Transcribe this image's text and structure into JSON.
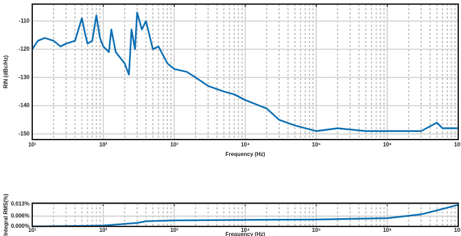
{
  "chart_data": [
    {
      "type": "line",
      "xlabel": "Frequency (Hz)",
      "ylabel": "RIN (dBc/Hz)",
      "xscale": "log",
      "grid": true,
      "xlim": [
        10,
        10000000
      ],
      "xticks": [
        {
          "value": 10,
          "label": "10¹"
        },
        {
          "value": 100,
          "label": "10²"
        },
        {
          "value": 1000,
          "label": "10³"
        },
        {
          "value": 10000,
          "label": "10⁴"
        },
        {
          "value": 100000,
          "label": "10⁵"
        },
        {
          "value": 1000000,
          "label": "10⁶"
        },
        {
          "value": 10000000,
          "label": "10⁷"
        }
      ],
      "ylim": [
        -152,
        -104
      ],
      "yticks": [
        -150,
        -140,
        -130,
        -120,
        -110
      ],
      "series": [
        {
          "color": "#0a6db3",
          "x": [
            10,
            12,
            15,
            20,
            25,
            30,
            40,
            50,
            55,
            60,
            70,
            80,
            90,
            100,
            120,
            130,
            150,
            200,
            230,
            250,
            280,
            300,
            350,
            400,
            500,
            600,
            800,
            1000,
            1500,
            2000,
            3000,
            5000,
            7000,
            10000,
            20000,
            30000,
            50000,
            100000,
            200000,
            500000,
            1000000,
            3000000,
            5000000,
            6000000,
            10000000
          ],
          "values": [
            -120,
            -117,
            -116,
            -117,
            -119,
            -118,
            -117,
            -109,
            -114,
            -118,
            -117,
            -108,
            -116,
            -119,
            -121,
            -113,
            -121,
            -125,
            -129,
            -113,
            -120,
            -107,
            -113,
            -110,
            -120,
            -119,
            -125,
            -127,
            -128,
            -130,
            -133,
            -135,
            -136,
            -138,
            -141,
            -145,
            -147,
            -149,
            -148,
            -149,
            -149,
            -149,
            -146,
            -148,
            -148
          ]
        }
      ]
    },
    {
      "type": "line",
      "xlabel": "Frequency (Hz)",
      "ylabel": "Integral RMS(%)",
      "xscale": "log",
      "grid": true,
      "xlim": [
        10,
        10000000
      ],
      "xticks": [
        {
          "value": 10,
          "label": "10¹"
        },
        {
          "value": 100,
          "label": "10²"
        },
        {
          "value": 1000,
          "label": "10³"
        },
        {
          "value": 10000,
          "label": "10⁴"
        },
        {
          "value": 100000,
          "label": "10⁵"
        },
        {
          "value": 1000000,
          "label": "10⁶"
        },
        {
          "value": 10000000,
          "label": "10⁷"
        }
      ],
      "ylim": [
        0,
        0.0135
      ],
      "yticks": [
        {
          "value": 0,
          "label": "0.000%"
        },
        {
          "value": 0.006,
          "label": "0.006%"
        },
        {
          "value": 0.013,
          "label": "0.013%"
        }
      ],
      "series": [
        {
          "color": "#0a6db3",
          "x": [
            10,
            100,
            300,
            400,
            1000,
            10000,
            100000,
            1000000,
            3000000,
            10000000
          ],
          "values": [
            0,
            0.0005,
            0.002,
            0.003,
            0.0035,
            0.0038,
            0.004,
            0.0048,
            0.007,
            0.0125
          ]
        }
      ]
    }
  ]
}
